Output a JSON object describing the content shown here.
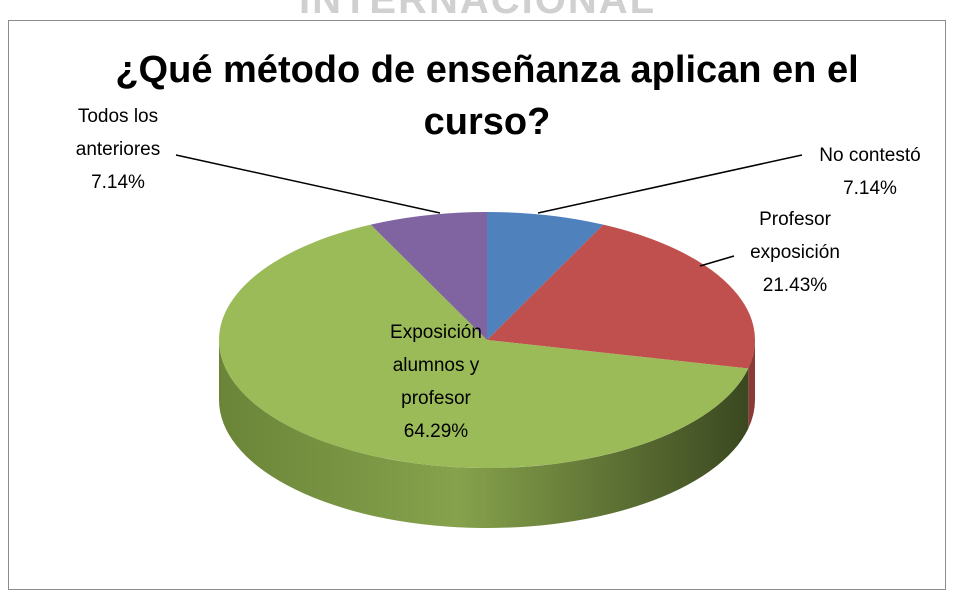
{
  "header_text": "INTERNACIONAL",
  "chart_data": {
    "type": "pie3d",
    "title": "¿Qué método de enseñanza aplican en el curso?",
    "categories": [
      "No contestó",
      "Profesor exposición",
      "Exposición alumnos y profesor",
      "Todos los anteriores"
    ],
    "values": [
      7.14,
      21.43,
      64.29,
      7.14
    ],
    "value_labels": [
      "7.14%",
      "21.43%",
      "64.29%",
      "7.14%"
    ],
    "colors": [
      "#4f81bd",
      "#c0504d",
      "#9bbb59",
      "#8064a2"
    ]
  }
}
